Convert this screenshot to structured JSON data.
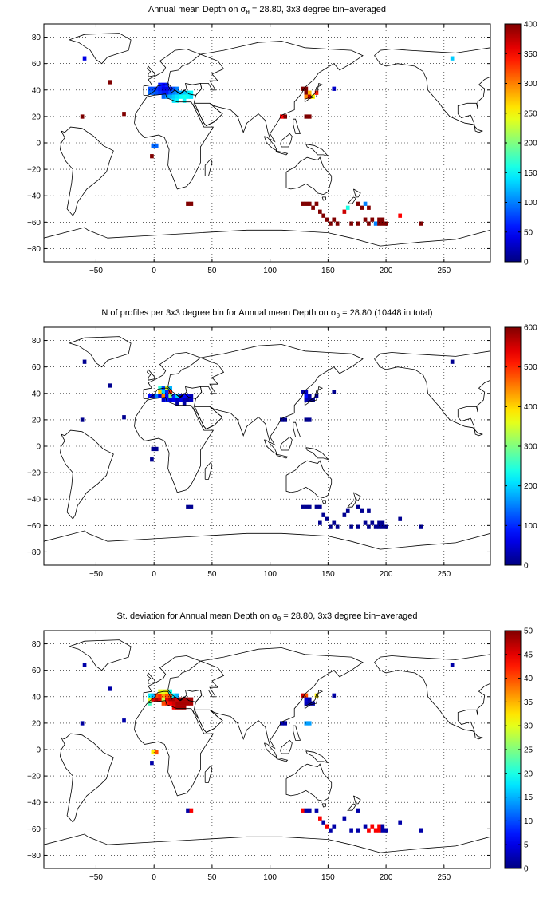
{
  "chart_data": [
    {
      "type": "heatmap",
      "title_prefix": "Annual mean Depth on ",
      "title_sigma": "σ",
      "title_sub": "θ",
      "title_suffix": " = 28.80, 3x3 degree bin−averaged",
      "xlim": [
        -95,
        290
      ],
      "ylim": [
        -90,
        90
      ],
      "xticks": [
        -50,
        0,
        50,
        100,
        150,
        200,
        250
      ],
      "yticks": [
        80,
        60,
        40,
        20,
        0,
        -20,
        -40,
        -60,
        -80
      ],
      "grid": true,
      "colorbar": {
        "min": 0,
        "max": 400,
        "ticks": [
          0,
          50,
          100,
          150,
          200,
          250,
          300,
          350,
          400
        ],
        "colormap": "jet"
      },
      "cells": [
        [
          -60,
          64,
          40
        ],
        [
          -38,
          46,
          400
        ],
        [
          -62,
          20,
          400
        ],
        [
          -26,
          22,
          400
        ],
        [
          -1,
          -2,
          90
        ],
        [
          2,
          -2,
          90
        ],
        [
          -2,
          -10,
          400
        ],
        [
          -4,
          38,
          90
        ],
        [
          -1,
          38,
          90
        ],
        [
          2,
          38,
          80
        ],
        [
          5,
          38,
          70
        ],
        [
          8,
          38,
          60
        ],
        [
          11,
          38,
          60
        ],
        [
          14,
          38,
          80
        ],
        [
          17,
          38,
          100
        ],
        [
          20,
          38,
          110
        ],
        [
          23,
          38,
          120
        ],
        [
          26,
          38,
          130
        ],
        [
          29,
          38,
          140
        ],
        [
          32,
          38,
          150
        ],
        [
          -4,
          41,
          80
        ],
        [
          -1,
          41,
          80
        ],
        [
          2,
          41,
          70
        ],
        [
          5,
          41,
          60
        ],
        [
          8,
          41,
          40
        ],
        [
          11,
          41,
          40
        ],
        [
          14,
          41,
          60
        ],
        [
          17,
          41,
          80
        ],
        [
          20,
          41,
          100
        ],
        [
          5,
          44,
          60
        ],
        [
          8,
          44,
          50
        ],
        [
          11,
          44,
          60
        ],
        [
          8,
          35,
          90
        ],
        [
          11,
          35,
          110
        ],
        [
          14,
          35,
          120
        ],
        [
          17,
          35,
          130
        ],
        [
          20,
          35,
          140
        ],
        [
          23,
          35,
          150
        ],
        [
          26,
          35,
          160
        ],
        [
          29,
          35,
          150
        ],
        [
          32,
          35,
          140
        ],
        [
          17,
          32,
          140
        ],
        [
          20,
          32,
          150
        ],
        [
          26,
          32,
          150
        ],
        [
          128,
          41,
          400
        ],
        [
          131,
          41,
          400
        ],
        [
          131,
          38,
          400
        ],
        [
          134,
          38,
          280
        ],
        [
          131,
          35,
          300
        ],
        [
          134,
          35,
          380
        ],
        [
          137,
          35,
          250
        ],
        [
          140,
          38,
          340
        ],
        [
          155,
          41,
          30
        ],
        [
          113,
          20,
          400
        ],
        [
          110,
          20,
          350
        ],
        [
          131,
          20,
          400
        ],
        [
          134,
          20,
          400
        ],
        [
          29,
          -46,
          400
        ],
        [
          32,
          -46,
          400
        ],
        [
          257,
          64,
          130
        ],
        [
          128,
          -46,
          400
        ],
        [
          131,
          -46,
          400
        ],
        [
          134,
          -46,
          400
        ],
        [
          137,
          -49,
          400
        ],
        [
          140,
          -46,
          400
        ],
        [
          143,
          -52,
          400
        ],
        [
          146,
          -55,
          400
        ],
        [
          149,
          -58,
          400
        ],
        [
          155,
          -58,
          400
        ],
        [
          158,
          -61,
          400
        ],
        [
          152,
          -61,
          400
        ],
        [
          164,
          -52,
          370
        ],
        [
          167,
          -49,
          160
        ],
        [
          176,
          -46,
          400
        ],
        [
          179,
          -49,
          400
        ],
        [
          182,
          -46,
          100
        ],
        [
          185,
          -49,
          400
        ],
        [
          182,
          -58,
          400
        ],
        [
          188,
          -58,
          400
        ],
        [
          185,
          -61,
          400
        ],
        [
          191,
          -61,
          100
        ],
        [
          194,
          -58,
          400
        ],
        [
          197,
          -58,
          400
        ],
        [
          194,
          -61,
          400
        ],
        [
          197,
          -61,
          400
        ],
        [
          200,
          -61,
          400
        ],
        [
          170,
          -61,
          400
        ],
        [
          176,
          -61,
          400
        ],
        [
          212,
          -55,
          350
        ],
        [
          230,
          -61,
          400
        ]
      ]
    },
    {
      "type": "heatmap",
      "title_prefix": "N of profiles per 3x3 degree bin for Annual mean Depth on ",
      "title_sigma": "σ",
      "title_sub": "θ",
      "title_suffix": " = 28.80 (10448 in total)",
      "xlim": [
        -95,
        290
      ],
      "ylim": [
        -90,
        90
      ],
      "xticks": [
        -50,
        0,
        50,
        100,
        150,
        200,
        250
      ],
      "yticks": [
        80,
        60,
        40,
        20,
        0,
        -20,
        -40,
        -60,
        -80
      ],
      "grid": true,
      "colorbar": {
        "min": 0,
        "max": 600,
        "ticks": [
          0,
          100,
          200,
          300,
          400,
          500,
          600
        ],
        "colormap": "jet"
      },
      "cells": [
        [
          -60,
          64,
          10
        ],
        [
          -38,
          46,
          10
        ],
        [
          -62,
          20,
          10
        ],
        [
          -26,
          22,
          10
        ],
        [
          -1,
          -2,
          10
        ],
        [
          2,
          -2,
          10
        ],
        [
          -2,
          -10,
          10
        ],
        [
          -4,
          38,
          80
        ],
        [
          -1,
          38,
          30
        ],
        [
          2,
          38,
          150
        ],
        [
          5,
          41,
          400
        ],
        [
          8,
          41,
          200
        ],
        [
          11,
          41,
          100
        ],
        [
          14,
          41,
          500
        ],
        [
          5,
          44,
          250
        ],
        [
          8,
          44,
          120
        ],
        [
          11,
          44,
          350
        ],
        [
          14,
          44,
          180
        ],
        [
          5,
          38,
          60
        ],
        [
          8,
          38,
          450
        ],
        [
          11,
          38,
          80
        ],
        [
          14,
          38,
          300
        ],
        [
          17,
          38,
          100
        ],
        [
          20,
          38,
          200
        ],
        [
          23,
          38,
          40
        ],
        [
          26,
          38,
          80
        ],
        [
          29,
          38,
          60
        ],
        [
          32,
          38,
          30
        ],
        [
          8,
          35,
          40
        ],
        [
          11,
          35,
          90
        ],
        [
          14,
          35,
          50
        ],
        [
          17,
          35,
          70
        ],
        [
          20,
          35,
          40
        ],
        [
          23,
          35,
          60
        ],
        [
          26,
          35,
          30
        ],
        [
          29,
          35,
          20
        ],
        [
          32,
          35,
          40
        ],
        [
          20,
          32,
          20
        ],
        [
          26,
          32,
          20
        ],
        [
          128,
          41,
          20
        ],
        [
          131,
          41,
          40
        ],
        [
          131,
          38,
          80
        ],
        [
          134,
          38,
          20
        ],
        [
          131,
          35,
          30
        ],
        [
          134,
          35,
          20
        ],
        [
          137,
          35,
          10
        ],
        [
          140,
          38,
          10
        ],
        [
          155,
          41,
          10
        ],
        [
          113,
          20,
          10
        ],
        [
          110,
          20,
          10
        ],
        [
          131,
          20,
          10
        ],
        [
          134,
          20,
          10
        ],
        [
          29,
          -46,
          10
        ],
        [
          32,
          -46,
          10
        ],
        [
          257,
          64,
          10
        ],
        [
          128,
          -46,
          10
        ],
        [
          131,
          -46,
          10
        ],
        [
          134,
          -46,
          10
        ],
        [
          140,
          -46,
          10
        ],
        [
          143,
          -46,
          10
        ],
        [
          146,
          -52,
          10
        ],
        [
          149,
          -55,
          10
        ],
        [
          143,
          -58,
          10
        ],
        [
          155,
          -58,
          10
        ],
        [
          158,
          -61,
          10
        ],
        [
          152,
          -61,
          10
        ],
        [
          164,
          -52,
          10
        ],
        [
          167,
          -49,
          10
        ],
        [
          176,
          -46,
          10
        ],
        [
          179,
          -49,
          10
        ],
        [
          185,
          -49,
          10
        ],
        [
          182,
          -58,
          10
        ],
        [
          188,
          -58,
          10
        ],
        [
          185,
          -61,
          10
        ],
        [
          191,
          -61,
          10
        ],
        [
          194,
          -58,
          10
        ],
        [
          197,
          -58,
          10
        ],
        [
          194,
          -61,
          10
        ],
        [
          197,
          -61,
          10
        ],
        [
          200,
          -61,
          10
        ],
        [
          170,
          -61,
          10
        ],
        [
          176,
          -61,
          10
        ],
        [
          212,
          -55,
          10
        ],
        [
          230,
          -61,
          10
        ]
      ]
    },
    {
      "type": "heatmap",
      "title_prefix": "St. deviation for Annual mean Depth on ",
      "title_sigma": "σ",
      "title_sub": "θ",
      "title_suffix": " = 28.80, 3x3 degree bin−averaged",
      "xlim": [
        -95,
        290
      ],
      "ylim": [
        -90,
        90
      ],
      "xticks": [
        -50,
        0,
        50,
        100,
        150,
        200,
        250
      ],
      "yticks": [
        80,
        60,
        40,
        20,
        0,
        -20,
        -40,
        -60,
        -80
      ],
      "grid": true,
      "colorbar": {
        "min": 0,
        "max": 50,
        "ticks": [
          0,
          5,
          10,
          15,
          20,
          25,
          30,
          35,
          40,
          45,
          50
        ],
        "colormap": "jet"
      },
      "cells": [
        [
          -60,
          64,
          2
        ],
        [
          -38,
          46,
          2
        ],
        [
          -62,
          20,
          2
        ],
        [
          -26,
          22,
          2
        ],
        [
          -1,
          -2,
          32
        ],
        [
          2,
          -2,
          40
        ],
        [
          -2,
          -10,
          2
        ],
        [
          -4,
          38,
          30
        ],
        [
          -1,
          38,
          45
        ],
        [
          2,
          38,
          48
        ],
        [
          5,
          38,
          45
        ],
        [
          8,
          38,
          28
        ],
        [
          11,
          38,
          45
        ],
        [
          14,
          38,
          48
        ],
        [
          17,
          38,
          48
        ],
        [
          20,
          38,
          46
        ],
        [
          23,
          38,
          48
        ],
        [
          26,
          38,
          48
        ],
        [
          29,
          38,
          48
        ],
        [
          32,
          38,
          48
        ],
        [
          -4,
          41,
          18
        ],
        [
          -1,
          41,
          15
        ],
        [
          2,
          41,
          40
        ],
        [
          5,
          41,
          42
        ],
        [
          8,
          41,
          36
        ],
        [
          11,
          41,
          40
        ],
        [
          14,
          41,
          40
        ],
        [
          17,
          41,
          18
        ],
        [
          20,
          41,
          15
        ],
        [
          5,
          44,
          30
        ],
        [
          8,
          44,
          30
        ],
        [
          11,
          44,
          32
        ],
        [
          14,
          44,
          20
        ],
        [
          -4,
          35,
          22
        ],
        [
          8,
          35,
          40
        ],
        [
          11,
          35,
          42
        ],
        [
          14,
          35,
          44
        ],
        [
          17,
          35,
          46
        ],
        [
          20,
          35,
          48
        ],
        [
          23,
          35,
          48
        ],
        [
          26,
          35,
          48
        ],
        [
          29,
          35,
          48
        ],
        [
          32,
          35,
          48
        ],
        [
          17,
          32,
          44
        ],
        [
          20,
          32,
          48
        ],
        [
          23,
          32,
          48
        ],
        [
          26,
          32,
          48
        ],
        [
          128,
          41,
          46
        ],
        [
          131,
          41,
          40
        ],
        [
          131,
          38,
          4
        ],
        [
          134,
          38,
          2
        ],
        [
          131,
          35,
          3
        ],
        [
          134,
          35,
          2
        ],
        [
          137,
          35,
          2
        ],
        [
          140,
          41,
          32
        ],
        [
          155,
          41,
          2
        ],
        [
          113,
          20,
          2
        ],
        [
          110,
          20,
          2
        ],
        [
          131,
          20,
          14
        ],
        [
          134,
          20,
          14
        ],
        [
          29,
          -46,
          2
        ],
        [
          32,
          -46,
          44
        ],
        [
          257,
          64,
          2
        ],
        [
          128,
          -46,
          44
        ],
        [
          131,
          -46,
          2
        ],
        [
          134,
          -46,
          2
        ],
        [
          140,
          -46,
          2
        ],
        [
          143,
          -52,
          44
        ],
        [
          146,
          -55,
          2
        ],
        [
          149,
          -58,
          44
        ],
        [
          155,
          -58,
          2
        ],
        [
          152,
          -61,
          2
        ],
        [
          164,
          -52,
          2
        ],
        [
          176,
          -46,
          2
        ],
        [
          182,
          -58,
          2
        ],
        [
          188,
          -58,
          44
        ],
        [
          185,
          -61,
          44
        ],
        [
          191,
          -61,
          44
        ],
        [
          194,
          -58,
          44
        ],
        [
          197,
          -58,
          2
        ],
        [
          194,
          -61,
          44
        ],
        [
          197,
          -61,
          2
        ],
        [
          200,
          -61,
          2
        ],
        [
          170,
          -61,
          2
        ],
        [
          176,
          -61,
          2
        ],
        [
          212,
          -55,
          2
        ],
        [
          230,
          -61,
          2
        ]
      ]
    }
  ]
}
